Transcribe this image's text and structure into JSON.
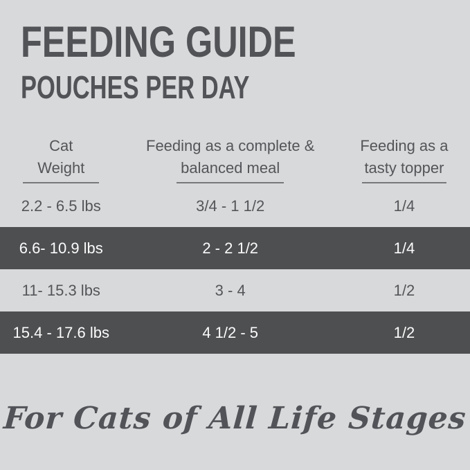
{
  "title": "FEEDING GUIDE",
  "subtitle": "POUCHES PER DAY",
  "table": {
    "columns": [
      {
        "label_line1": "Cat",
        "label_line2": "Weight"
      },
      {
        "label_line1": "Feeding as a complete &",
        "label_line2": "balanced meal"
      },
      {
        "label_line1": "Feeding as a",
        "label_line2": "tasty topper"
      }
    ],
    "rows": [
      {
        "weight": "2.2 - 6.5 lbs",
        "meal": "3/4 - 1 1/2",
        "topper": "1/4",
        "highlighted": false
      },
      {
        "weight": "6.6- 10.9 lbs",
        "meal": "2 - 2 1/2",
        "topper": "1/4",
        "highlighted": true
      },
      {
        "weight": "11- 15.3 lbs",
        "meal": "3 - 4",
        "topper": "1/2",
        "highlighted": false
      },
      {
        "weight": "15.4 - 17.6 lbs",
        "meal": "4 1/2 - 5",
        "topper": "1/2",
        "highlighted": true
      }
    ]
  },
  "footer": "For Cats of All Life Stages",
  "colors": {
    "background": "#d8d9da",
    "row_highlight": "#4e4f51",
    "text_dark": "#545559",
    "text_light": "#fbfbfb",
    "underline": "#77787b"
  }
}
